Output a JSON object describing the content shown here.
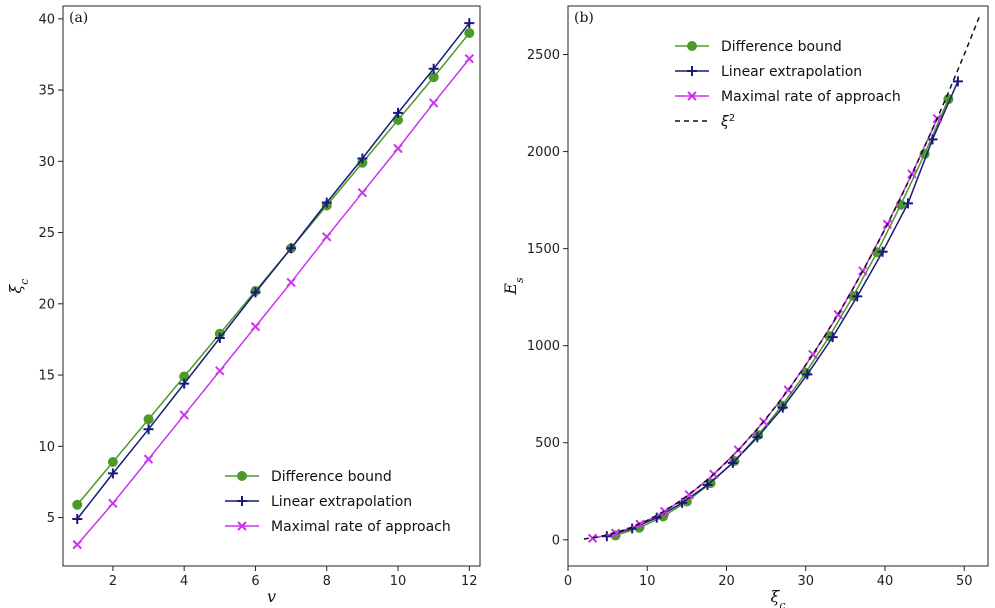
{
  "chart_data": [
    {
      "type": "line",
      "panel_label": "(a)",
      "xlabel": "v",
      "ylabel": "ξ",
      "ylabel_sub": "c",
      "xlim": [
        0.6,
        12.3
      ],
      "ylim": [
        1.6,
        40.9
      ],
      "xticks": [
        2,
        4,
        6,
        8,
        10,
        12
      ],
      "yticks": [
        5,
        10,
        15,
        20,
        25,
        30,
        35,
        40
      ],
      "legend_position": "lower-right",
      "series": [
        {
          "name": "Difference bound",
          "marker": "circle",
          "color": "#4c9a2a",
          "x": [
            1,
            2,
            3,
            4,
            5,
            6,
            7,
            8,
            9,
            10,
            11,
            12
          ],
          "y": [
            5.9,
            8.9,
            11.9,
            14.9,
            17.9,
            20.9,
            23.9,
            26.9,
            29.9,
            32.9,
            35.9,
            39.0
          ]
        },
        {
          "name": "Linear extrapolation",
          "marker": "plus",
          "color": "#1a1a7a",
          "x": [
            1,
            2,
            3,
            4,
            5,
            6,
            7,
            8,
            9,
            10,
            11,
            12
          ],
          "y": [
            4.9,
            8.1,
            11.2,
            14.4,
            17.6,
            20.8,
            23.9,
            27.1,
            30.2,
            33.4,
            36.5,
            39.7
          ]
        },
        {
          "name": "Maximal rate of approach",
          "marker": "x",
          "color": "#cc33ee",
          "x": [
            1,
            2,
            3,
            4,
            5,
            6,
            7,
            8,
            9,
            10,
            11,
            12
          ],
          "y": [
            3.1,
            6.0,
            9.1,
            12.2,
            15.3,
            18.4,
            21.5,
            24.7,
            27.8,
            30.9,
            34.1,
            37.2
          ]
        }
      ]
    },
    {
      "type": "line",
      "panel_label": "(b)",
      "xlabel": "ξ",
      "xlabel_sub": "c",
      "ylabel": "E",
      "ylabel_sub": "s",
      "xlim": [
        0,
        53
      ],
      "ylim": [
        -135,
        2750
      ],
      "xticks": [
        0,
        10,
        20,
        30,
        40,
        50
      ],
      "yticks": [
        0,
        500,
        1000,
        1500,
        2000,
        2500
      ],
      "legend_position": "top-left",
      "series": [
        {
          "name": "Difference bound",
          "marker": "circle",
          "color": "#4c9a2a",
          "x": [
            6,
            9,
            12,
            15,
            18,
            21,
            24,
            27,
            30,
            33,
            36,
            39,
            42,
            45,
            48
          ],
          "y": [
            22,
            62,
            120,
            197,
            292,
            406,
            540,
            691,
            861,
            1049,
            1256,
            1481,
            1726,
            1988,
            2270
          ]
        },
        {
          "name": "Linear extrapolation",
          "marker": "plus",
          "color": "#1a1a7a",
          "x": [
            4.9,
            8.1,
            11.2,
            14.4,
            17.6,
            20.8,
            23.9,
            27.1,
            30.2,
            33.4,
            36.5,
            39.7,
            42.9,
            46.0,
            49.2
          ],
          "y": [
            18,
            58,
            114,
            190,
            283,
            396,
            528,
            681,
            852,
            1044,
            1254,
            1484,
            1733,
            2063,
            2362
          ]
        },
        {
          "name": "Maximal rate of approach",
          "marker": "x",
          "color": "#cc33ee",
          "x": [
            3.1,
            6.0,
            9.1,
            12.2,
            15.3,
            18.4,
            21.5,
            24.7,
            27.8,
            30.9,
            34.1,
            37.2,
            40.3,
            43.4,
            46.6
          ],
          "y": [
            8,
            34,
            80,
            146,
            232,
            338,
            463,
            608,
            772,
            955,
            1160,
            1385,
            1626,
            1885,
            2170
          ]
        },
        {
          "name": "ξ",
          "name_sup": "2",
          "marker": "none",
          "style": "dashed",
          "color": "#111111",
          "x": [
            2,
            4,
            6,
            8,
            10,
            12,
            14,
            16,
            18,
            20,
            22,
            24,
            26,
            28,
            30,
            32,
            34,
            36,
            38,
            40,
            42,
            44,
            46,
            48,
            50,
            52
          ],
          "y": [
            4,
            16,
            36,
            64,
            100,
            144,
            196,
            256,
            324,
            400,
            484,
            576,
            676,
            784,
            900,
            1024,
            1156,
            1296,
            1444,
            1600,
            1764,
            1936,
            2116,
            2304,
            2500,
            2704
          ]
        }
      ]
    }
  ]
}
